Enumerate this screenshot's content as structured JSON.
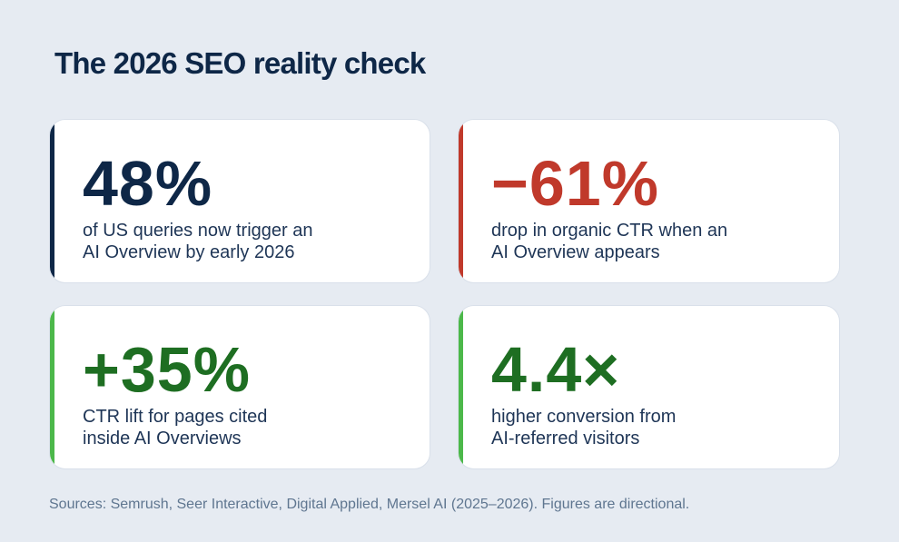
{
  "title": "The 2026 SEO reality check",
  "colors": {
    "background": "#e6ebf2",
    "navy": "#0e2747",
    "red": "#c0392b",
    "green": "#1e6e22",
    "green_accent": "#4cb84a"
  },
  "cards": [
    {
      "value": "48%",
      "line1": "of US queries now trigger an",
      "line2": "AI Overview by early 2026",
      "accent": "#0e2747",
      "value_color": "#0e2747"
    },
    {
      "value": "−61%",
      "line1": "drop in organic CTR when an",
      "line2": "AI Overview appears",
      "accent": "#c0392b",
      "value_color": "#c0392b"
    },
    {
      "value": "+35%",
      "line1": "CTR lift for pages cited",
      "line2": "inside AI Overviews",
      "accent": "#4cb84a",
      "value_color": "#1e6e22"
    },
    {
      "value": "4.4×",
      "line1": "higher conversion from",
      "line2": "AI-referred visitors",
      "accent": "#4cb84a",
      "value_color": "#1e6e22"
    }
  ],
  "sources": "Sources: Semrush, Seer Interactive, Digital Applied, Mersel AI (2025–2026). Figures are directional."
}
